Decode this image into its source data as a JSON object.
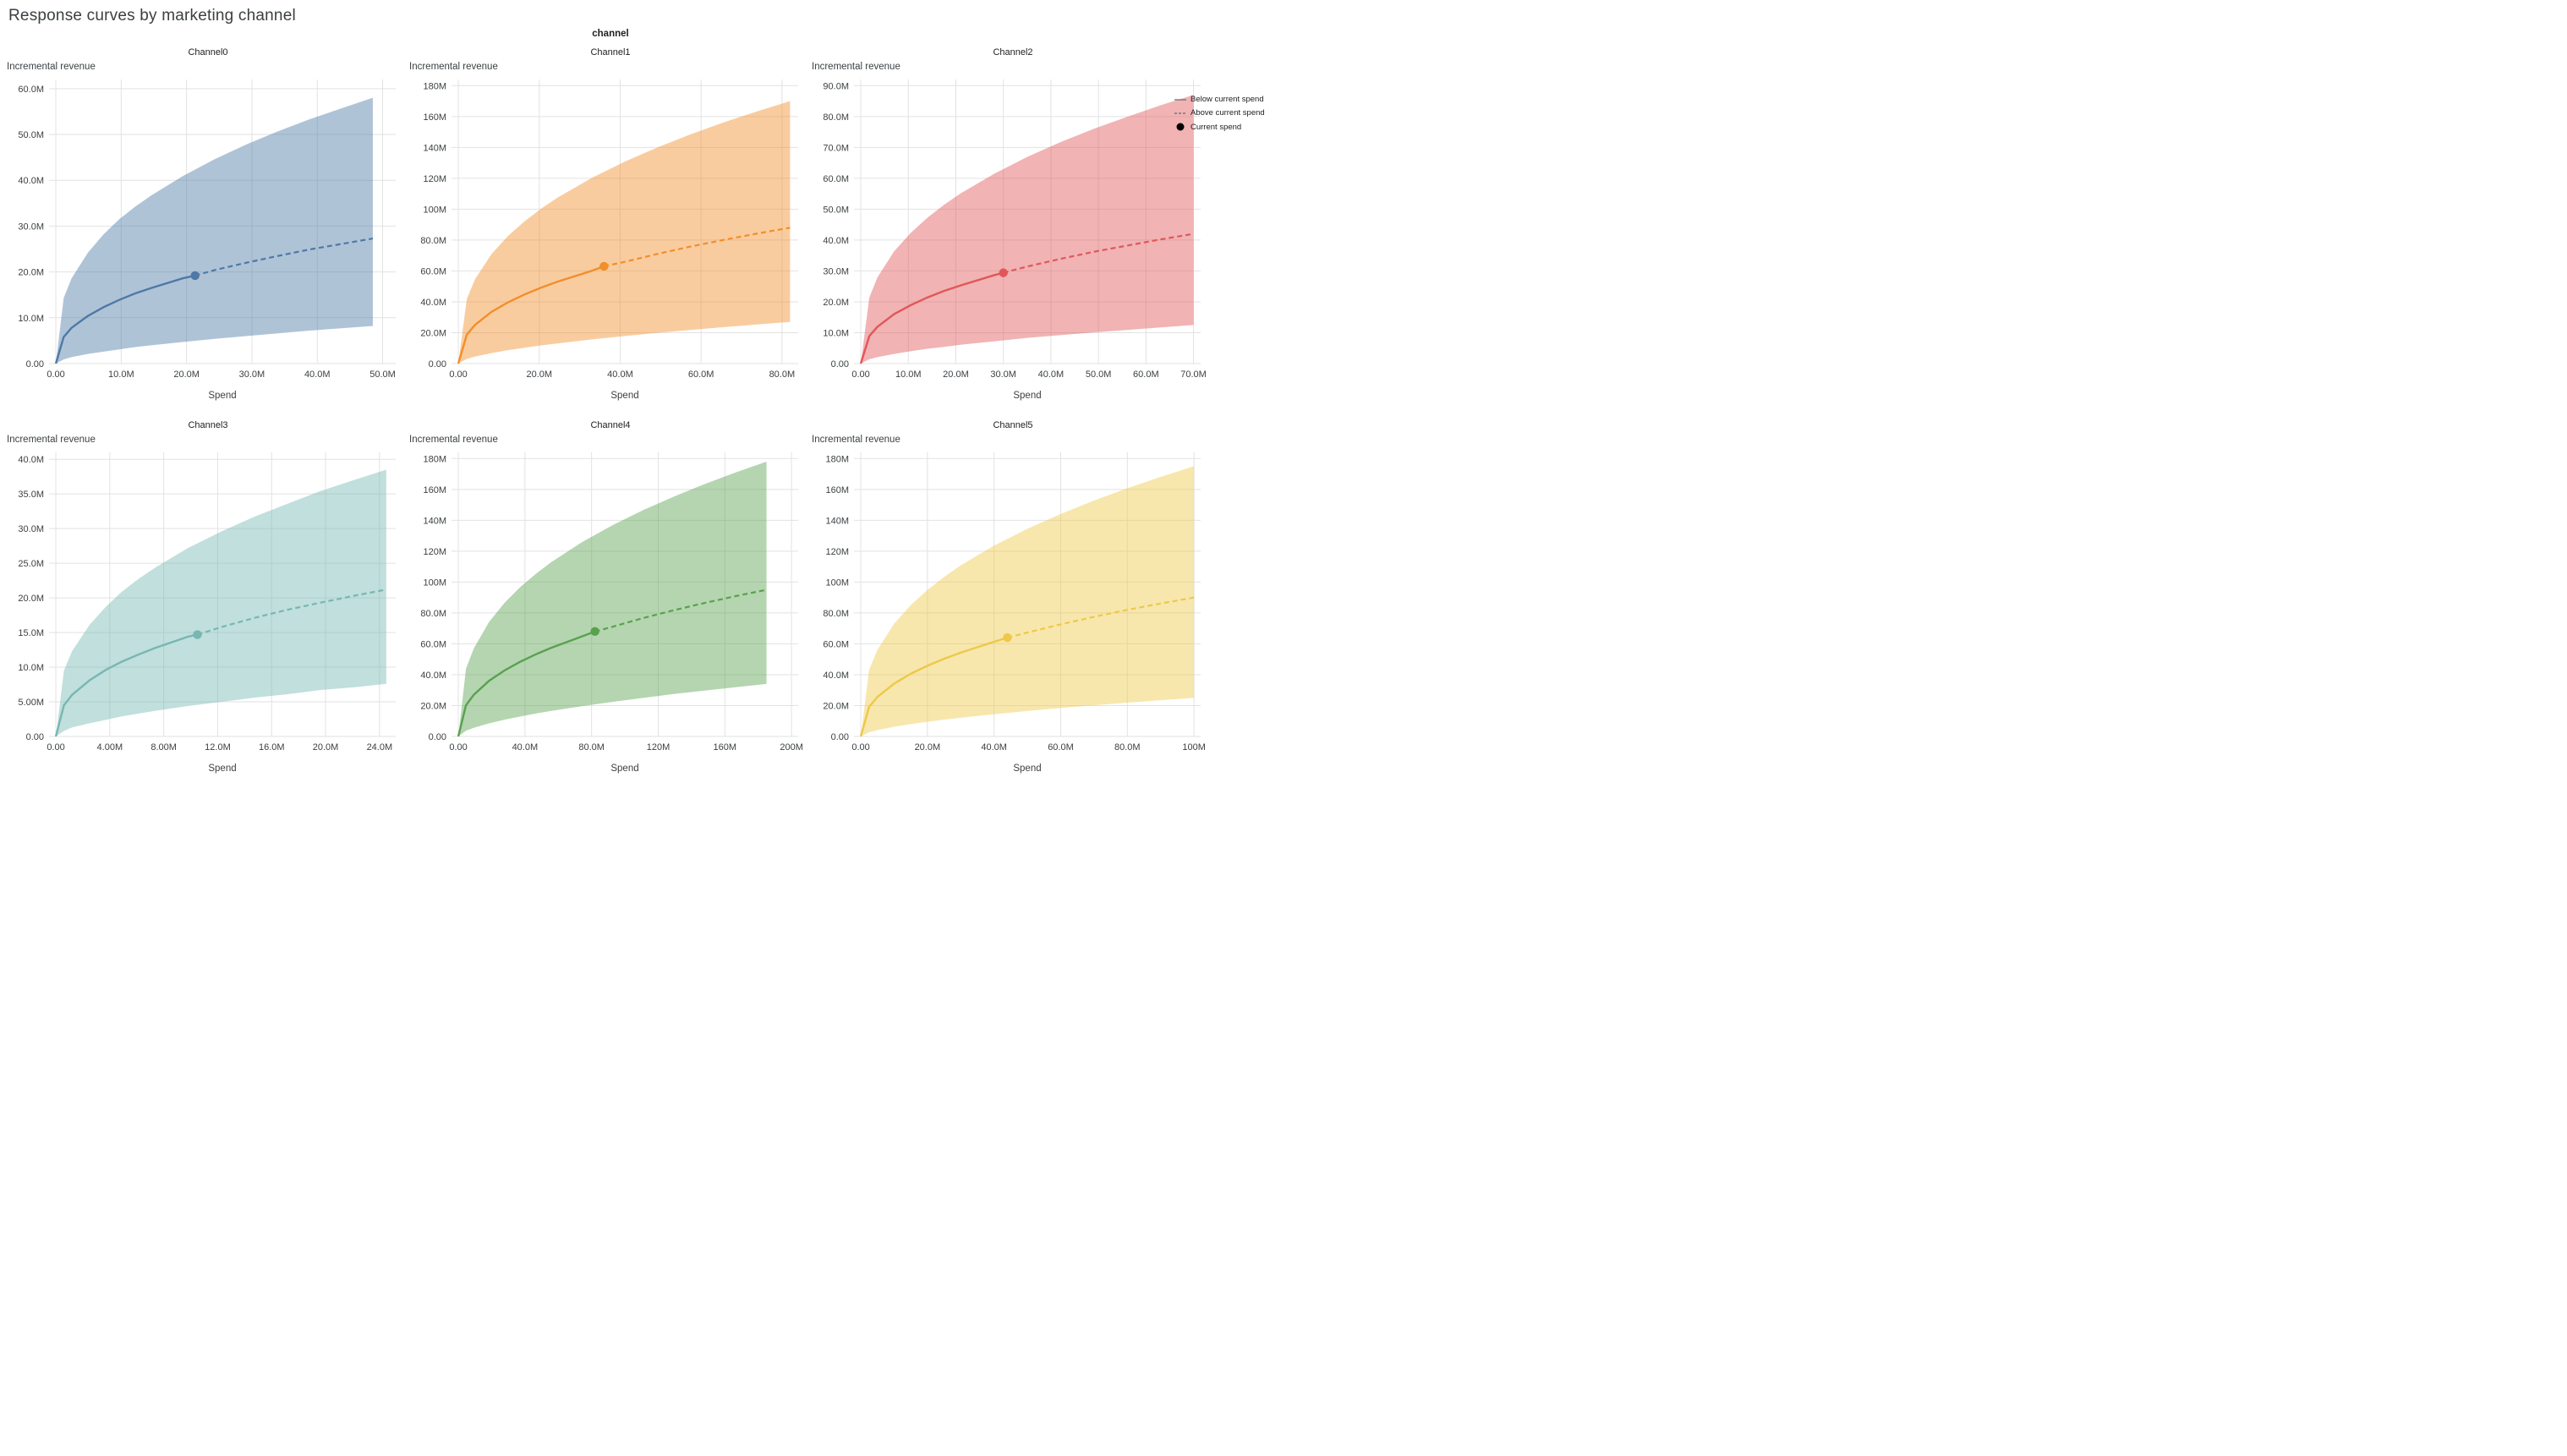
{
  "page": {
    "title": "Response curves by marketing channel",
    "facet_title": "channel"
  },
  "axis_labels": {
    "y": "Incremental revenue",
    "x": "Spend"
  },
  "legend": {
    "items": [
      {
        "label": "Below current spend",
        "marker": "solid-line"
      },
      {
        "label": "Above current spend",
        "marker": "dashed-line"
      },
      {
        "label": "Current spend",
        "marker": "black-dot"
      }
    ]
  },
  "chart_data": {
    "type": "line",
    "units": "USD millions (M)",
    "grid": true,
    "band_meaning": "credible interval around mean response curve",
    "channels": [
      {
        "name": "Channel0",
        "color": "#4E79A7",
        "x_max": 52,
        "y_max": 62,
        "x_tick_values": [
          0,
          10,
          20,
          30,
          40,
          50
        ],
        "x_tick_labels": [
          "0.00",
          "10.0M",
          "20.0M",
          "30.0M",
          "40.0M",
          "50.0M"
        ],
        "y_tick_values": [
          0,
          10,
          20,
          30,
          40,
          50,
          60
        ],
        "y_tick_labels": [
          "0.00",
          "10.0M",
          "20.0M",
          "30.0M",
          "40.0M",
          "50.0M",
          "60.0M"
        ],
        "current_spend": {
          "x": 21.3,
          "y": 19.2
        },
        "x": [
          0,
          1.2,
          2.4,
          4.9,
          7.3,
          9.7,
          12.1,
          14.6,
          19.4,
          24.3,
          29.1,
          34,
          38.8,
          43.7,
          48.5
        ],
        "series": {
          "mean": [
            0,
            5.8,
            7.8,
            10.4,
            12.3,
            13.9,
            15.3,
            16.5,
            18.6,
            20.4,
            22,
            23.5,
            24.9,
            26.1,
            27.3
          ],
          "upper": [
            0,
            14.3,
            18.6,
            24.2,
            28.2,
            31.5,
            34.2,
            36.7,
            40.9,
            44.6,
            47.8,
            50.7,
            53.3,
            55.7,
            58
          ],
          "lower": [
            0,
            0.9,
            1.4,
            2.1,
            2.6,
            3.1,
            3.6,
            4,
            4.7,
            5.4,
            6,
            6.6,
            7.2,
            7.7,
            8.2
          ]
        }
      },
      {
        "name": "Channel1",
        "color": "#F28E2B",
        "x_max": 84,
        "y_max": 184,
        "x_tick_values": [
          0,
          20,
          40,
          60,
          80
        ],
        "x_tick_labels": [
          "0.00",
          "20.0M",
          "40.0M",
          "60.0M",
          "80.0M"
        ],
        "y_tick_values": [
          0,
          20,
          40,
          60,
          80,
          100,
          120,
          140,
          160,
          180
        ],
        "y_tick_labels": [
          "0.00",
          "20.0M",
          "40.0M",
          "60.0M",
          "80.0M",
          "100M",
          "120M",
          "140M",
          "160M",
          "180M"
        ],
        "current_spend": {
          "x": 36,
          "y": 63
        },
        "x": [
          0,
          2.1,
          4.1,
          8.2,
          12.3,
          16.4,
          20.5,
          24.6,
          32.8,
          41,
          49.2,
          57.4,
          65.6,
          73.8,
          82
        ],
        "series": {
          "mean": [
            0,
            18.7,
            25,
            33.5,
            39.7,
            44.8,
            49.2,
            53.1,
            59.9,
            65.8,
            71,
            75.8,
            80.1,
            84.2,
            88
          ],
          "upper": [
            0,
            41.8,
            54.5,
            70.9,
            82.7,
            92.2,
            100.4,
            107.6,
            120,
            130.6,
            140,
            148.5,
            156.2,
            163.3,
            170
          ],
          "lower": [
            0,
            3,
            4.5,
            6.8,
            8.7,
            10.3,
            11.8,
            13.1,
            15.6,
            17.8,
            19.9,
            21.8,
            23.6,
            25.3,
            27
          ]
        }
      },
      {
        "name": "Channel2",
        "color": "#E15759",
        "x_max": 71.5,
        "y_max": 92,
        "x_tick_values": [
          0,
          10,
          20,
          30,
          40,
          50,
          60,
          70
        ],
        "x_tick_labels": [
          "0.00",
          "10.0M",
          "20.0M",
          "30.0M",
          "40.0M",
          "50.0M",
          "60.0M",
          "70.0M"
        ],
        "y_tick_values": [
          0,
          10,
          20,
          30,
          40,
          50,
          60,
          70,
          80,
          90
        ],
        "y_tick_labels": [
          "0.00",
          "10.0M",
          "20.0M",
          "30.0M",
          "40.0M",
          "50.0M",
          "60.0M",
          "70.0M",
          "80.0M",
          "90.0M"
        ],
        "current_spend": {
          "x": 30,
          "y": 29.4
        },
        "x": [
          0,
          1.8,
          3.5,
          7,
          10.5,
          14,
          17.5,
          21,
          28,
          35,
          42,
          49,
          56,
          63,
          70
        ],
        "series": {
          "mean": [
            0,
            8.9,
            11.9,
            16,
            18.9,
            21.4,
            23.5,
            25.3,
            28.6,
            31.4,
            33.9,
            36.2,
            38.2,
            40.2,
            42
          ],
          "upper": [
            0,
            21.4,
            27.9,
            36.3,
            42.3,
            47.2,
            51.4,
            55.1,
            61.4,
            66.9,
            71.7,
            76,
            79.9,
            83.6,
            87
          ],
          "lower": [
            0,
            1.4,
            2.1,
            3.1,
            4,
            4.8,
            5.4,
            6.1,
            7.2,
            8.3,
            9.2,
            10.1,
            10.9,
            11.7,
            12.5
          ]
        }
      },
      {
        "name": "Channel3",
        "color": "#76B7B2",
        "x_max": 25.2,
        "y_max": 41,
        "x_tick_values": [
          0,
          4,
          8,
          12,
          16,
          20,
          24
        ],
        "x_tick_labels": [
          "0.00",
          "4.00M",
          "8.00M",
          "12.0M",
          "16.0M",
          "20.0M",
          "24.0M"
        ],
        "y_tick_values": [
          0,
          5,
          10,
          15,
          20,
          25,
          30,
          35,
          40
        ],
        "y_tick_labels": [
          "0.00",
          "5.00M",
          "10.0M",
          "15.0M",
          "20.0M",
          "25.0M",
          "30.0M",
          "35.0M",
          "40.0M"
        ],
        "current_spend": {
          "x": 10.5,
          "y": 14.7
        },
        "x": [
          0,
          0.6,
          1.2,
          2.5,
          3.7,
          4.9,
          6.1,
          7.4,
          9.8,
          12.3,
          14.7,
          17.2,
          19.6,
          22.1,
          24.5
        ],
        "series": {
          "mean": [
            0,
            4.5,
            6,
            8.1,
            9.6,
            10.8,
            11.8,
            12.8,
            14.4,
            15.8,
            17.1,
            18.3,
            19.3,
            20.3,
            21.2
          ],
          "upper": [
            0,
            9.5,
            12.3,
            16.1,
            18.7,
            20.9,
            22.7,
            24.4,
            27.2,
            29.6,
            31.7,
            33.6,
            35.4,
            37,
            38.5
          ],
          "lower": [
            0,
            0.8,
            1.3,
            1.9,
            2.4,
            2.9,
            3.3,
            3.7,
            4.4,
            5,
            5.6,
            6.1,
            6.7,
            7.1,
            7.6
          ]
        }
      },
      {
        "name": "Channel4",
        "color": "#59A14F",
        "x_max": 204,
        "y_max": 184,
        "x_tick_values": [
          0,
          40,
          80,
          120,
          160,
          200
        ],
        "x_tick_labels": [
          "0.00",
          "40.0M",
          "80.0M",
          "120M",
          "160M",
          "200M"
        ],
        "y_tick_values": [
          0,
          20,
          40,
          60,
          80,
          100,
          120,
          140,
          160,
          180
        ],
        "y_tick_labels": [
          "0.00",
          "20.0M",
          "40.0M",
          "60.0M",
          "80.0M",
          "100M",
          "120M",
          "140M",
          "160M",
          "180M"
        ],
        "current_spend": {
          "x": 82,
          "y": 68
        },
        "x": [
          0,
          4.6,
          9.3,
          18.5,
          27.8,
          37,
          46.3,
          55.5,
          74,
          92.5,
          111,
          129.5,
          148,
          166.5,
          185
        ],
        "series": {
          "mean": [
            0,
            20.2,
            27,
            36.1,
            42.8,
            48.3,
            53.1,
            57.3,
            64.7,
            71,
            76.7,
            81.8,
            86.5,
            90.9,
            95
          ],
          "upper": [
            0,
            43.8,
            57,
            74.2,
            86.6,
            96.6,
            105.1,
            112.7,
            125.7,
            136.8,
            146.6,
            155.4,
            163.5,
            171,
            178
          ],
          "lower": [
            0,
            3.7,
            5.6,
            8.5,
            10.9,
            12.9,
            14.8,
            16.5,
            19.6,
            22.4,
            25,
            27.5,
            29.7,
            31.9,
            34
          ]
        }
      },
      {
        "name": "Channel5",
        "color": "#EDC949",
        "x_max": 102,
        "y_max": 184,
        "x_tick_values": [
          0,
          20,
          40,
          60,
          80,
          100
        ],
        "x_tick_labels": [
          "0.00",
          "20.0M",
          "40.0M",
          "60.0M",
          "80.0M",
          "100M"
        ],
        "y_tick_values": [
          0,
          20,
          40,
          60,
          80,
          100,
          120,
          140,
          160,
          180
        ],
        "y_tick_labels": [
          "0.00",
          "20.0M",
          "40.0M",
          "60.0M",
          "80.0M",
          "100M",
          "120M",
          "140M",
          "160M",
          "180M"
        ],
        "current_spend": {
          "x": 44,
          "y": 64
        },
        "x": [
          0,
          2.5,
          5,
          10,
          15,
          20,
          25,
          30,
          40,
          50,
          60,
          70,
          80,
          90,
          100
        ],
        "series": {
          "mean": [
            0,
            19.1,
            25.6,
            34.2,
            40.6,
            45.8,
            50.3,
            54.3,
            61.3,
            67.3,
            72.6,
            77.5,
            82,
            86.1,
            90
          ],
          "upper": [
            0,
            43.1,
            56.1,
            73,
            85.1,
            94.9,
            103.3,
            110.8,
            123.6,
            134.5,
            144.1,
            152.8,
            160.8,
            168.1,
            175
          ],
          "lower": [
            0,
            2.7,
            4.1,
            6.3,
            8,
            9.5,
            10.9,
            12.1,
            14.4,
            16.5,
            18.4,
            20.2,
            21.9,
            23.5,
            25
          ]
        }
      }
    ]
  }
}
